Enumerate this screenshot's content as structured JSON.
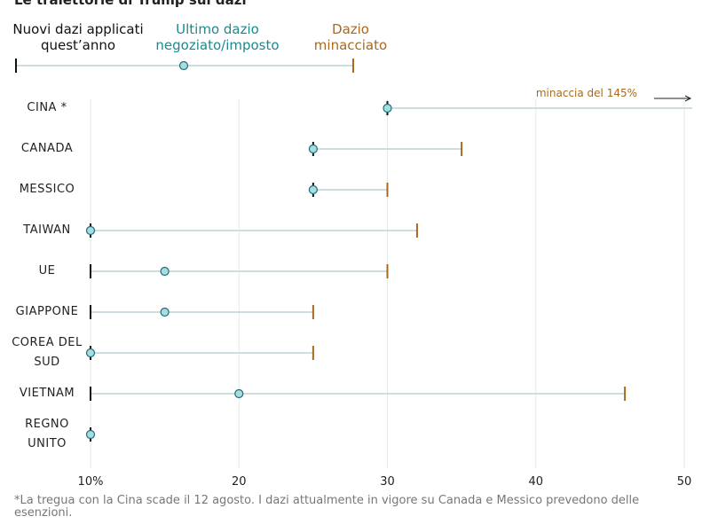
{
  "chart_data": {
    "type": "dumbbell",
    "title": "Le traiettorie di Trump sui dazi",
    "categories": [
      "CINA *",
      "CANADA",
      "MESSICO",
      "TAIWAN",
      "UE",
      "GIAPPONE",
      "COREA DEL SUD",
      "VIETNAM",
      "REGNO UNITO"
    ],
    "series": [
      {
        "name": "Nuovi dazi applicati quest’anno",
        "color": "#111111",
        "values": [
          30,
          25,
          25,
          10,
          10,
          10,
          10,
          10,
          10
        ]
      },
      {
        "name": "Ultimo dazio negoziato/imposto",
        "color": "#1b8a8f",
        "values": [
          30,
          25,
          25,
          10,
          15,
          15,
          10,
          20,
          10
        ]
      },
      {
        "name": "Dazio minacciato",
        "color": "#a86a1e",
        "values": [
          145,
          35,
          30,
          32,
          30,
          25,
          25,
          46,
          null
        ]
      }
    ],
    "xlim": [
      10,
      50
    ],
    "xticks": [
      {
        "value": 10,
        "label": "10%"
      },
      20,
      30,
      40,
      50
    ],
    "grid": true,
    "annotations": [
      "minaccia del 145%"
    ],
    "footnote": "*La tregua con la Cina scade il 12 agosto. I dazi attualmente in vigore su Canada e Messico prevedono delle esenzioni."
  }
}
